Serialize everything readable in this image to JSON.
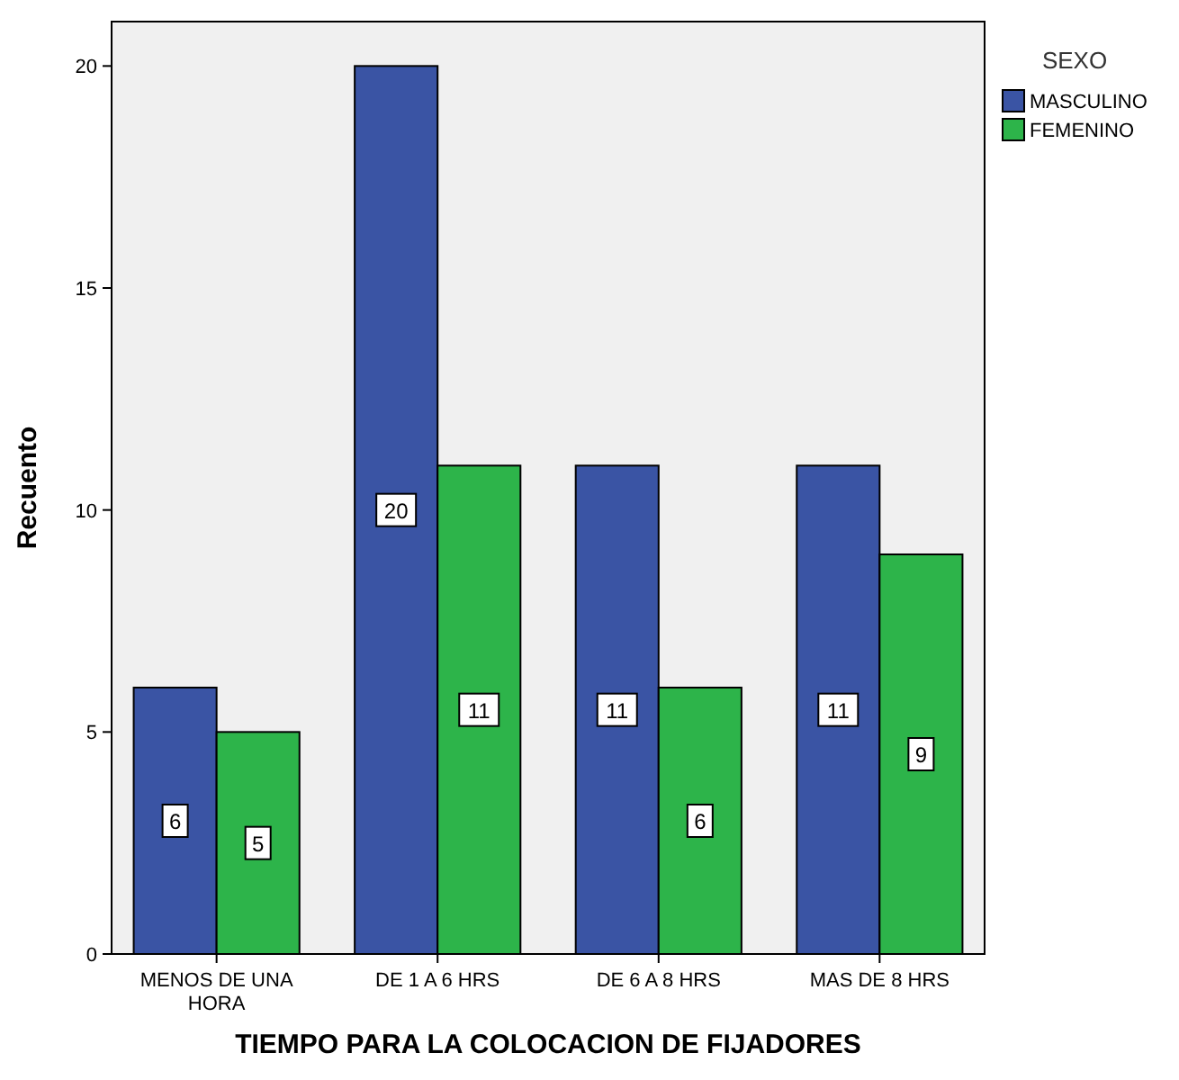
{
  "chart_data": {
    "type": "bar",
    "xlabel": "TIEMPO PARA LA COLOCACION DE FIJADORES",
    "ylabel": "Recuento",
    "legend_title": "SEXO",
    "legend": "top right",
    "categories": [
      "MENOS DE UNA HORA",
      "DE 1 A 6 HRS",
      "DE 6 A 8 HRS",
      "MAS DE 8 HRS"
    ],
    "series": [
      {
        "name": "MASCULINO",
        "color": "#3a54a4",
        "values": [
          6,
          20,
          11,
          11
        ]
      },
      {
        "name": "FEMENINO",
        "color": "#2db44a",
        "values": [
          5,
          11,
          6,
          9
        ]
      }
    ],
    "ylim": [
      0,
      21
    ],
    "yticks": [
      0,
      5,
      10,
      15,
      20
    ],
    "data_labels": true,
    "grid": false
  }
}
